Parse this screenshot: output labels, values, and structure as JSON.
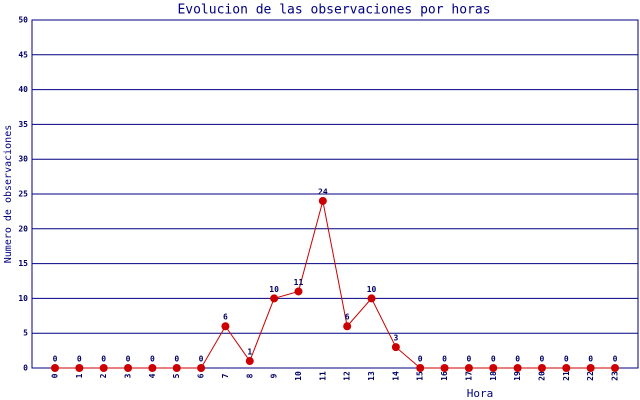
{
  "chart_data": {
    "type": "line",
    "title": "Evolucion de las observaciones por horas",
    "x_label": "Hora",
    "y_label": "Numero de observaciones",
    "categories": [
      "0",
      "1",
      "2",
      "3",
      "4",
      "5",
      "6",
      "7",
      "8",
      "9",
      "10",
      "11",
      "12",
      "13",
      "14",
      "15",
      "16",
      "17",
      "18",
      "19",
      "20",
      "21",
      "22",
      "23"
    ],
    "values": [
      0,
      0,
      0,
      0,
      0,
      0,
      0,
      6,
      1,
      10,
      11,
      24,
      6,
      10,
      3,
      0,
      0,
      0,
      0,
      0,
      0,
      0,
      0,
      0
    ],
    "color": "#cc0000",
    "ylim": [
      0,
      50
    ],
    "yticks": [
      0,
      5,
      10,
      15,
      20,
      25,
      30,
      35,
      40,
      45,
      50
    ],
    "grid": true
  }
}
